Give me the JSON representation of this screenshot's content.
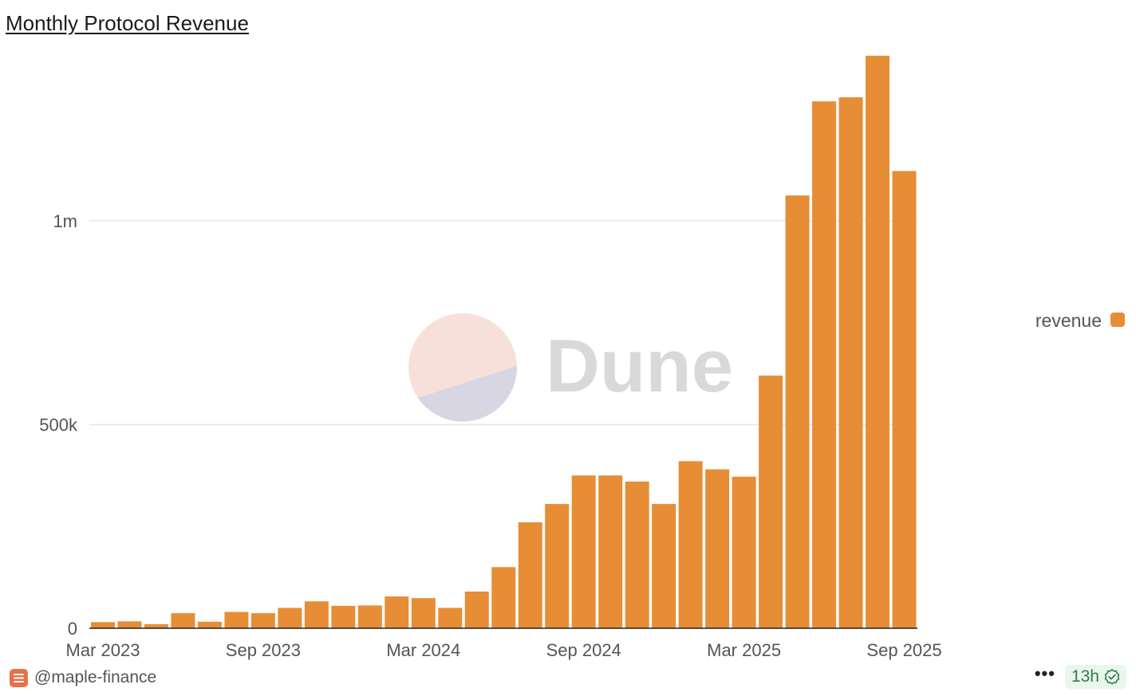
{
  "title": "Monthly Protocol Revenue",
  "footer": {
    "author": "@maple-finance",
    "freshness": "13h",
    "menu_icon": "more-dots-icon",
    "author_icon": "dune-stack-icon",
    "status_icon": "check-badge-icon"
  },
  "colors": {
    "bar": "#e68d36",
    "watermark_text": "#d9d9d9",
    "watermark_top": "#f7e0da",
    "watermark_bottom": "#d8d6e2",
    "badge_bg": "#e9f6ec",
    "badge_fg": "#2f7d46",
    "author_icon": "#e8704a"
  },
  "watermark": "Dune",
  "chart_data": {
    "type": "bar",
    "x": [
      "2023-03",
      "2023-04",
      "2023-05",
      "2023-06",
      "2023-07",
      "2023-08",
      "2023-09",
      "2023-10",
      "2023-11",
      "2023-12",
      "2024-01",
      "2024-02",
      "2024-03",
      "2024-04",
      "2024-05",
      "2024-06",
      "2024-07",
      "2024-08",
      "2024-09",
      "2024-10",
      "2024-11",
      "2024-12",
      "2025-01",
      "2025-02",
      "2025-03",
      "2025-04",
      "2025-05",
      "2025-06",
      "2025-07",
      "2025-08",
      "2025-09"
    ],
    "series": [
      {
        "name": "revenue",
        "values": [
          15000,
          17000,
          10000,
          37000,
          16000,
          40000,
          37000,
          50000,
          66000,
          55000,
          56000,
          78000,
          74000,
          50000,
          90000,
          150000,
          260000,
          305000,
          375000,
          375000,
          360000,
          305000,
          410000,
          390000,
          372000,
          620000,
          1062000,
          1293000,
          1303000,
          1405000,
          1122000
        ]
      }
    ],
    "x_ticks": [
      "Mar 2023",
      "Sep 2023",
      "Mar 2024",
      "Sep 2024",
      "Mar 2025",
      "Sep 2025"
    ],
    "y_ticks": [
      "0",
      "500k",
      "1m"
    ],
    "y_tick_values": [
      0,
      500000,
      1000000
    ],
    "ylim": [
      0,
      1440000
    ],
    "legend": "right",
    "grid": true
  }
}
